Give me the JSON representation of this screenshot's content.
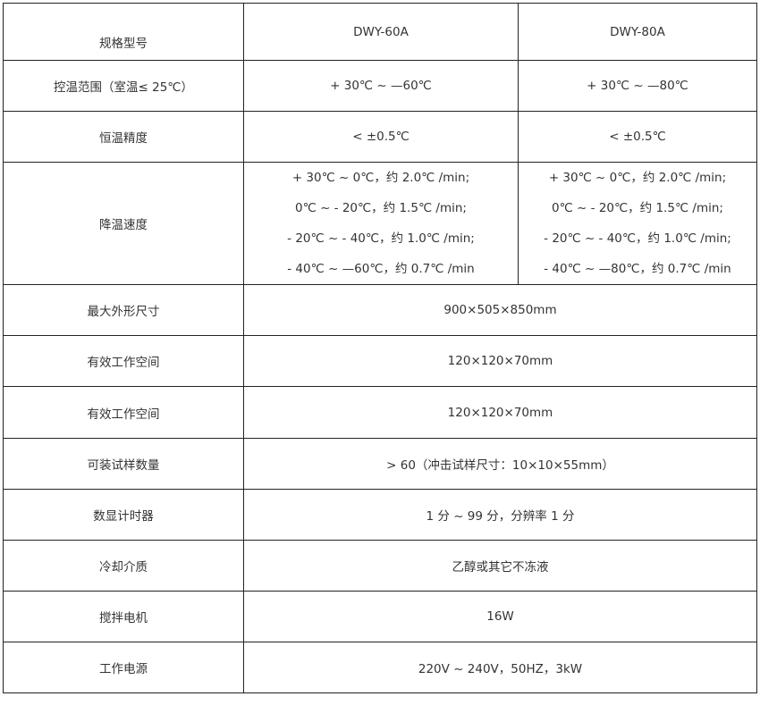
{
  "header": {
    "label": "规格型号",
    "models": [
      "DWY-60A",
      "DWY-80A"
    ]
  },
  "rows": [
    {
      "label": "控温范围（室温≤ 25℃）",
      "values": [
        "+ 30℃ ~ —60℃",
        "+ 30℃ ~ —80℃"
      ]
    },
    {
      "label": "恒温精度",
      "values": [
        "< ±0.5℃",
        "< ±0.5℃"
      ]
    },
    {
      "label": "降温速度",
      "lines": [
        [
          "+ 30℃ ~ 0℃，约 2.0℃ /min;",
          "0℃ ~ - 20℃，约 1.5℃ /min;",
          "- 20℃ ~ - 40℃，约 1.0℃ /min;",
          "- 40℃ ~ —60℃，约 0.7℃ /min"
        ],
        [
          "+ 30℃ ~ 0℃，约 2.0℃ /min;",
          "0℃ ~ - 20℃，约 1.5℃ /min;",
          "- 20℃ ~ - 40℃，约 1.0℃ /min;",
          "- 40℃ ~ —80℃，约 0.7℃ /min"
        ]
      ]
    },
    {
      "label": "最大外形尺寸",
      "value": "900×505×850mm"
    },
    {
      "label": "有效工作空间",
      "value": "120×120×70mm"
    },
    {
      "label": "有效工作空间",
      "value": "120×120×70mm"
    },
    {
      "label": "可装试样数量",
      "value": "> 60（冲击试样尺寸：10×10×55mm）"
    },
    {
      "label": "数显计时器",
      "value": "1 分 ~ 99 分，分辨率 1 分"
    },
    {
      "label": "冷却介质",
      "value": "乙醇或其它不冻液"
    },
    {
      "label": "搅拌电机",
      "value": "16W"
    },
    {
      "label": "工作电源",
      "value": "220V ~ 240V，50HZ，3kW"
    }
  ]
}
